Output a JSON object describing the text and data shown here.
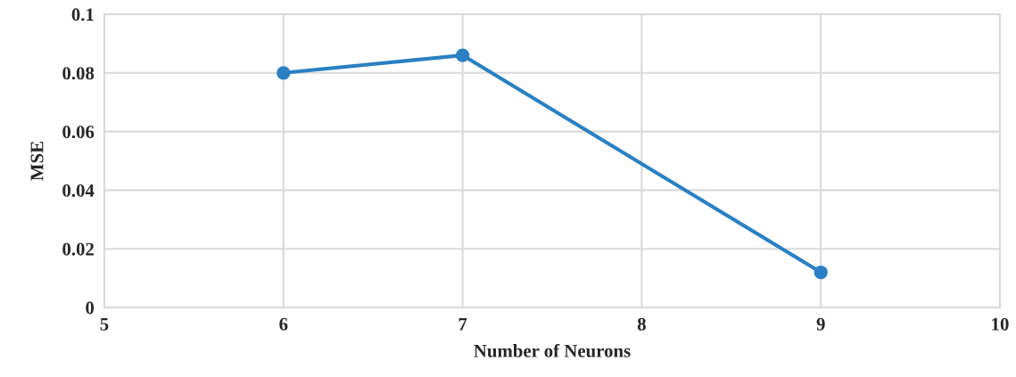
{
  "chart_data": {
    "type": "line",
    "xlabel": "Number of Neurons",
    "ylabel": "MSE",
    "x": [
      6,
      7,
      9
    ],
    "series": [
      {
        "color": "#2a80c2",
        "values": [
          0.08,
          0.086,
          0.012
        ]
      }
    ],
    "xlim": [
      5,
      10
    ],
    "xticks": [
      5,
      6,
      7,
      8,
      9,
      10
    ],
    "ylim": [
      0,
      0.1
    ],
    "yticks": [
      0,
      0.02,
      0.04,
      0.06,
      0.08,
      0.1
    ],
    "grid": true,
    "marker": "circle",
    "line_style": "solid",
    "legend": false
  }
}
